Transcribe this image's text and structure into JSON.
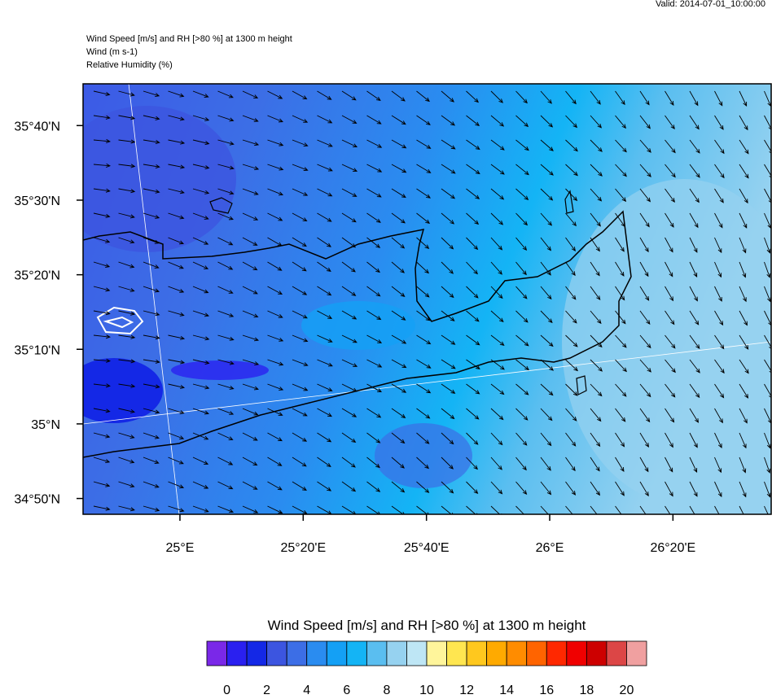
{
  "header": {
    "valid": "Valid: 2014-07-01_10:00:00",
    "lines": [
      "Wind Speed [m/s] and RH [>80 %] at 1300 m height",
      "Wind   (m s-1)",
      "Relative Humidity   (%)"
    ]
  },
  "map": {
    "xlim": [
      24.738,
      26.599
    ],
    "ylim": [
      34.798,
      35.76
    ],
    "lat_ticks": [
      {
        "value": 35.6667,
        "label": "35°40'N"
      },
      {
        "value": 35.5,
        "label": "35°30'N"
      },
      {
        "value": 35.3333,
        "label": "35°20'N"
      },
      {
        "value": 35.1667,
        "label": "35°10'N"
      },
      {
        "value": 35,
        "label": "35°N"
      },
      {
        "value": 34.8333,
        "label": "34°50'N"
      }
    ],
    "lon_ticks": [
      {
        "value": 25,
        "label": "25°E"
      },
      {
        "value": 25.3333,
        "label": "25°20'E"
      },
      {
        "value": 25.6667,
        "label": "25°40'E"
      },
      {
        "value": 26,
        "label": "26°E"
      },
      {
        "value": 26.3333,
        "label": "26°20'E"
      }
    ]
  },
  "colorbar": {
    "title": "Wind Speed [m/s] and RH [>80 %] at 1300 m height",
    "colors": [
      "#7a28e8",
      "#2a20f0",
      "#1428e6",
      "#3c55e0",
      "#3c6ee6",
      "#2a8cf0",
      "#14a0f5",
      "#14b4f5",
      "#5abef0",
      "#96d2f0",
      "#bee6f5",
      "#fff59b",
      "#ffe650",
      "#ffc81e",
      "#ffaa00",
      "#ff8c00",
      "#ff6400",
      "#ff2800",
      "#f00000",
      "#cd0000",
      "#dc4646",
      "#f0a0a0"
    ],
    "ticks": [
      0,
      2,
      4,
      6,
      8,
      10,
      12,
      14,
      16,
      18,
      20
    ]
  }
}
